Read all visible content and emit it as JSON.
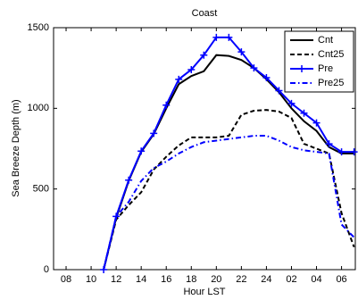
{
  "chart_data": {
    "type": "line",
    "title": "Coast",
    "x_label": "Hour LST",
    "y_label": "Sea Breeze Depth (m)",
    "x": [
      11,
      12,
      13,
      14,
      15,
      16,
      17,
      18,
      19,
      20,
      21,
      22,
      23,
      24,
      25,
      26,
      27,
      28,
      29,
      30,
      31
    ],
    "series": [
      {
        "name": "Cnt",
        "color": "#000000",
        "linestyle": "solid",
        "values": [
          0,
          320,
          550,
          730,
          840,
          1000,
          1150,
          1200,
          1230,
          1330,
          1325,
          1300,
          1250,
          1180,
          1100,
          1000,
          920,
          860,
          760,
          720,
          720
        ]
      },
      {
        "name": "Cnt25",
        "color": "#000000",
        "linestyle": "dashed",
        "values": [
          0,
          310,
          400,
          480,
          620,
          700,
          770,
          820,
          820,
          820,
          830,
          960,
          985,
          990,
          980,
          940,
          780,
          750,
          720,
          350,
          140
        ]
      },
      {
        "name": "Pre",
        "color": "#0000ff",
        "linestyle": "solid",
        "marker": "+",
        "values": [
          0,
          330,
          555,
          735,
          845,
          1020,
          1180,
          1240,
          1330,
          1440,
          1440,
          1350,
          1250,
          1190,
          1110,
          1030,
          970,
          910,
          780,
          730,
          730
        ]
      },
      {
        "name": "Pre25",
        "color": "#0000ff",
        "linestyle": "dashdot",
        "values": [
          0,
          330,
          420,
          550,
          630,
          670,
          720,
          760,
          790,
          800,
          810,
          820,
          830,
          830,
          800,
          760,
          740,
          730,
          720,
          280,
          200
        ]
      }
    ],
    "xlim": [
      7,
      31.1
    ],
    "xticks": [
      {
        "value": 8,
        "label": "08"
      },
      10,
      12,
      14,
      16,
      18,
      20,
      22,
      24,
      {
        "value": 26,
        "label": "02"
      },
      {
        "value": 28,
        "label": "04"
      },
      {
        "value": 30,
        "label": "06"
      }
    ],
    "ylim": [
      0,
      1500
    ],
    "yticks": [
      0,
      500,
      1000,
      1500
    ],
    "grid": false,
    "legend": "top-right"
  }
}
